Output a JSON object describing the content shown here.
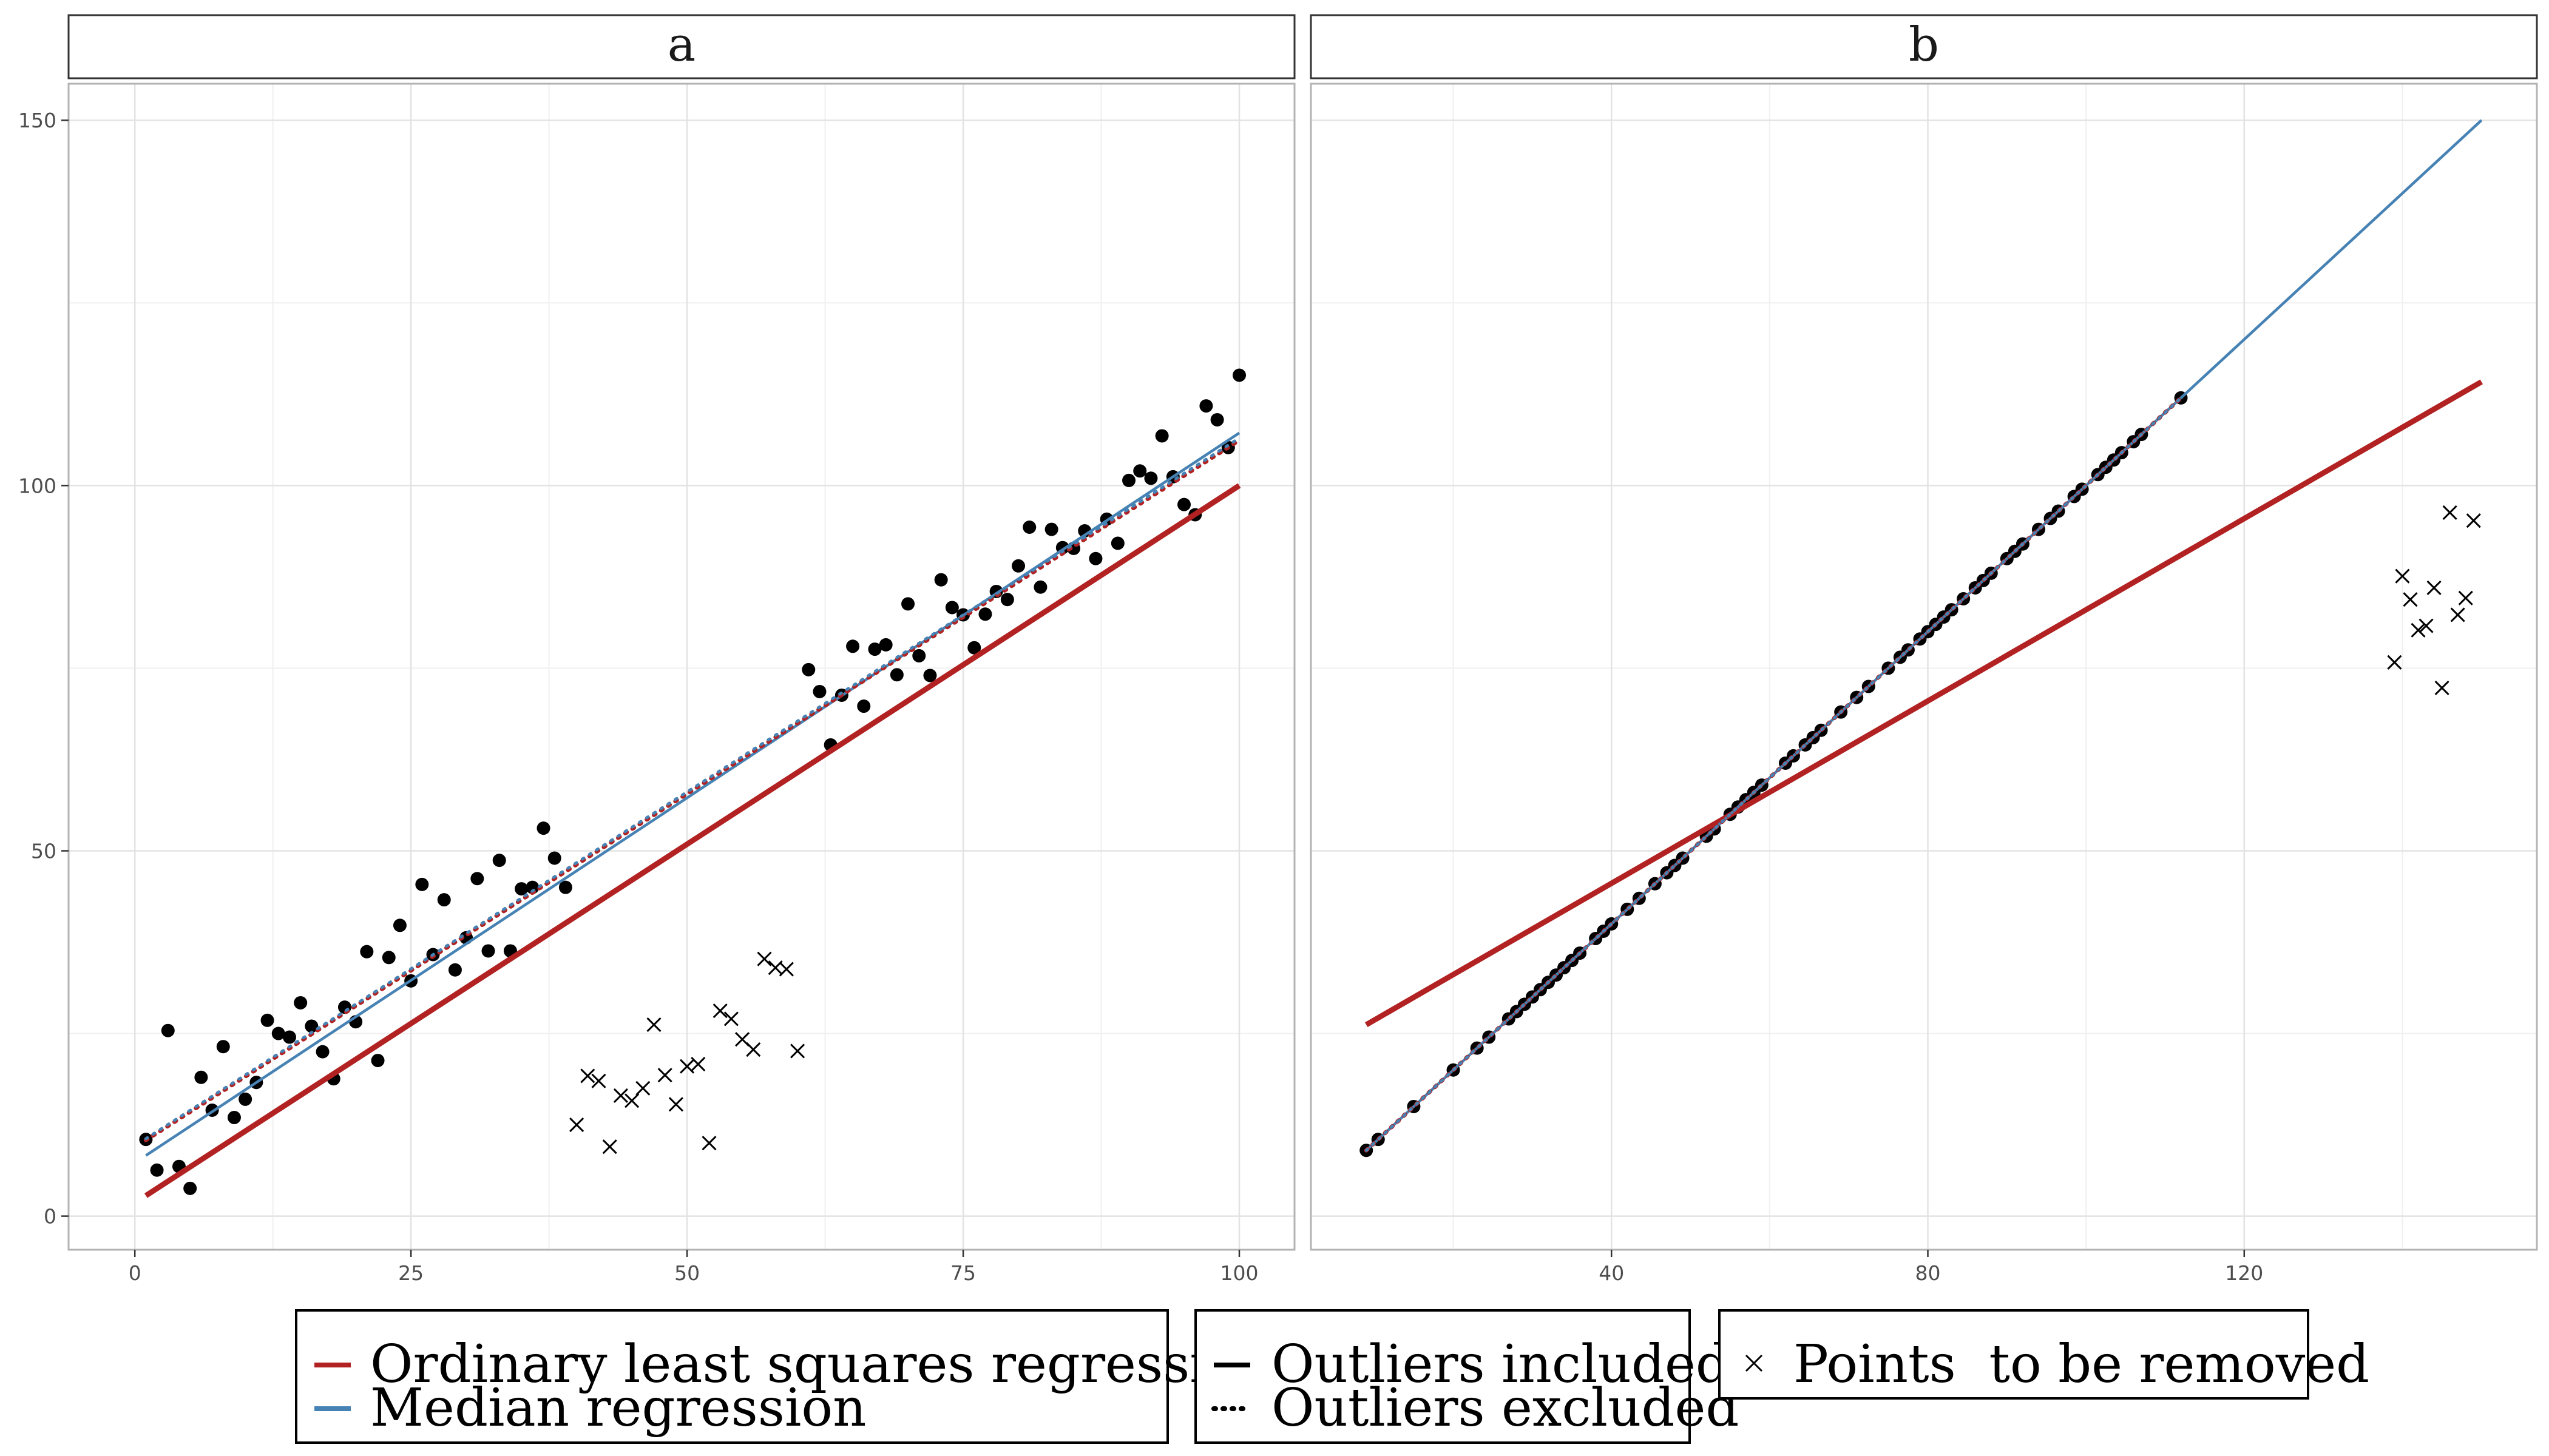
{
  "chart_data": [
    {
      "panel": "a",
      "type": "scatter",
      "xlim": [
        -6,
        105
      ],
      "ylim": [
        -4.6,
        155
      ],
      "x_ticks": [
        0,
        25,
        50,
        75,
        100
      ],
      "y_ticks": [
        0,
        50,
        100,
        150
      ],
      "x_tick_labels": [
        "0",
        "25",
        "50",
        "75",
        "100"
      ],
      "y_tick_labels": [
        "0",
        "50",
        "100",
        "150"
      ],
      "grid": true,
      "points": [
        [
          1,
          10.5
        ],
        [
          2,
          6.3
        ],
        [
          3,
          25.4
        ],
        [
          4,
          6.8
        ],
        [
          5,
          3.8
        ],
        [
          6,
          19
        ],
        [
          7,
          14.5
        ],
        [
          8,
          23.2
        ],
        [
          9,
          13.5
        ],
        [
          10,
          16
        ],
        [
          11,
          18.3
        ],
        [
          12,
          26.8
        ],
        [
          13,
          25
        ],
        [
          14,
          24.5
        ],
        [
          15,
          29.2
        ],
        [
          16,
          26
        ],
        [
          17,
          22.5
        ],
        [
          18,
          18.8
        ],
        [
          19,
          28.6
        ],
        [
          20,
          26.6
        ],
        [
          21,
          36.2
        ],
        [
          22,
          21.3
        ],
        [
          23,
          35.4
        ],
        [
          24,
          39.8
        ],
        [
          25,
          32.2
        ],
        [
          26,
          45.4
        ],
        [
          27,
          35.8
        ],
        [
          28,
          43.3
        ],
        [
          29,
          33.7
        ],
        [
          30,
          38.1
        ],
        [
          31,
          46.2
        ],
        [
          32,
          36.3
        ],
        [
          33,
          48.7
        ],
        [
          34,
          36.3
        ],
        [
          35,
          44.8
        ],
        [
          36,
          45
        ],
        [
          37,
          53.1
        ],
        [
          38,
          49
        ],
        [
          39,
          45
        ],
        [
          61,
          74.8
        ],
        [
          62,
          71.8
        ],
        [
          63,
          64.5
        ],
        [
          64,
          71.3
        ],
        [
          65,
          78
        ],
        [
          66,
          69.8
        ],
        [
          67,
          77.6
        ],
        [
          68,
          78.2
        ],
        [
          69,
          74.1
        ],
        [
          70,
          83.8
        ],
        [
          71,
          76.7
        ],
        [
          72,
          74
        ],
        [
          73,
          87.1
        ],
        [
          74,
          83.3
        ],
        [
          75,
          82.3
        ],
        [
          76,
          77.8
        ],
        [
          77,
          82.4
        ],
        [
          78,
          85.5
        ],
        [
          79,
          84.4
        ],
        [
          80,
          89
        ],
        [
          81,
          94.3
        ],
        [
          82,
          86.1
        ],
        [
          83,
          94
        ],
        [
          84,
          91.5
        ],
        [
          85,
          91.4
        ],
        [
          86,
          93.8
        ],
        [
          87,
          90
        ],
        [
          88,
          95.4
        ],
        [
          89,
          92.1
        ],
        [
          90,
          100.7
        ],
        [
          91,
          102
        ],
        [
          92,
          101
        ],
        [
          93,
          106.8
        ],
        [
          94,
          101.2
        ],
        [
          95,
          97.4
        ],
        [
          96,
          96
        ],
        [
          97,
          110.9
        ],
        [
          98,
          109
        ],
        [
          99,
          105.2
        ],
        [
          100,
          115.1
        ]
      ],
      "removed_points": [
        [
          40,
          12.5
        ],
        [
          41,
          19.2
        ],
        [
          42,
          18.5
        ],
        [
          43,
          9.5
        ],
        [
          44,
          16.5
        ],
        [
          45,
          15.8
        ],
        [
          46,
          17.5
        ],
        [
          47,
          26.2
        ],
        [
          48,
          19.3
        ],
        [
          49,
          15.3
        ],
        [
          50,
          20.5
        ],
        [
          51,
          20.8
        ],
        [
          52,
          10
        ],
        [
          53,
          28.1
        ],
        [
          54,
          27
        ],
        [
          55,
          24.2
        ],
        [
          56,
          22.8
        ],
        [
          57,
          35.2
        ],
        [
          58,
          34
        ],
        [
          59,
          33.8
        ],
        [
          60,
          22.6
        ]
      ],
      "series": [
        {
          "name": "Ordinary least squares regression",
          "style": "Outliers included",
          "color": "#B22222",
          "x": [
            1,
            100
          ],
          "y": [
            2.8,
            100
          ]
        },
        {
          "name": "Median regression",
          "style": "Outliers included",
          "color": "#4682B4",
          "x": [
            1,
            100
          ],
          "y": [
            8.3,
            107.2
          ]
        },
        {
          "name": "Ordinary least squares regression",
          "style": "Outliers excluded",
          "color": "#B22222",
          "x": [
            1,
            100
          ],
          "y": [
            10.4,
            106.2
          ]
        },
        {
          "name": "Median regression",
          "style": "Outliers excluded",
          "color": "#4682B4",
          "x": [
            1,
            100
          ],
          "y": [
            10.6,
            106.5
          ]
        }
      ]
    },
    {
      "panel": "b",
      "type": "scatter",
      "xlim": [
        2,
        157
      ],
      "ylim": [
        -4.6,
        155
      ],
      "x_ticks": [
        40,
        80,
        120
      ],
      "y_ticks": [
        0,
        50,
        100,
        150
      ],
      "x_tick_labels": [
        "40",
        "80",
        "120"
      ],
      "y_tick_labels": [
        "0",
        "50",
        "100",
        "150"
      ],
      "grid": true,
      "points": [
        [
          9,
          9
        ],
        [
          10.5,
          10.5
        ],
        [
          15,
          15
        ],
        [
          20,
          20
        ],
        [
          23,
          23
        ],
        [
          24.5,
          24.5
        ],
        [
          27,
          27
        ],
        [
          28,
          28
        ],
        [
          29,
          29
        ],
        [
          30,
          30
        ],
        [
          31,
          31
        ],
        [
          32,
          32
        ],
        [
          33,
          33
        ],
        [
          34,
          34
        ],
        [
          35,
          35
        ],
        [
          36,
          36
        ],
        [
          38,
          38
        ],
        [
          39,
          39
        ],
        [
          40,
          40
        ],
        [
          42,
          42
        ],
        [
          43.5,
          43.5
        ],
        [
          45.5,
          45.5
        ],
        [
          47,
          47
        ],
        [
          48,
          48
        ],
        [
          49,
          49
        ],
        [
          52,
          52
        ],
        [
          53,
          53
        ],
        [
          55,
          55
        ],
        [
          56,
          56
        ],
        [
          57,
          57
        ],
        [
          58,
          58
        ],
        [
          59,
          59
        ],
        [
          62,
          62
        ],
        [
          63,
          63
        ],
        [
          64.5,
          64.5
        ],
        [
          65.5,
          65.5
        ],
        [
          66.5,
          66.5
        ],
        [
          69,
          69
        ],
        [
          71,
          71
        ],
        [
          72.5,
          72.5
        ],
        [
          75,
          75
        ],
        [
          76.5,
          76.5
        ],
        [
          77.5,
          77.5
        ],
        [
          79,
          79
        ],
        [
          80,
          80
        ],
        [
          81,
          81
        ],
        [
          82,
          82
        ],
        [
          83,
          83
        ],
        [
          84.5,
          84.5
        ],
        [
          86,
          86
        ],
        [
          87,
          87
        ],
        [
          88,
          88
        ],
        [
          90,
          90
        ],
        [
          91,
          91
        ],
        [
          92,
          92
        ],
        [
          94,
          94
        ],
        [
          95.5,
          95.5
        ],
        [
          96.5,
          96.5
        ],
        [
          98.5,
          98.5
        ],
        [
          99.5,
          99.5
        ],
        [
          101.5,
          101.5
        ],
        [
          102.5,
          102.5
        ],
        [
          103.5,
          103.5
        ],
        [
          104.5,
          104.5
        ],
        [
          106,
          106
        ],
        [
          107,
          107
        ],
        [
          112,
          112
        ]
      ],
      "removed_points": [
        [
          139,
          75.8
        ],
        [
          140,
          87.6
        ],
        [
          141,
          84.4
        ],
        [
          142,
          80.2
        ],
        [
          143,
          80.8
        ],
        [
          144,
          86
        ],
        [
          145,
          72.3
        ],
        [
          146,
          96.3
        ],
        [
          147,
          82.3
        ],
        [
          148,
          84.6
        ],
        [
          149,
          95.2
        ]
      ],
      "series": [
        {
          "name": "Ordinary least squares regression",
          "style": "Outliers included",
          "color": "#B22222",
          "x": [
            9,
            150
          ],
          "y": [
            26.2,
            114.2
          ]
        },
        {
          "name": "Median regression",
          "style": "Outliers included",
          "color": "#4682B4",
          "x": [
            9,
            150
          ],
          "y": [
            9,
            150
          ]
        },
        {
          "name": "Ordinary least squares regression",
          "style": "Outliers excluded",
          "color": "#B22222",
          "x": [
            9,
            112
          ],
          "y": [
            9,
            112
          ]
        },
        {
          "name": "Median regression",
          "style": "Outliers excluded",
          "color": "#4682B4",
          "x": [
            9,
            112
          ],
          "y": [
            9,
            112
          ]
        }
      ]
    }
  ],
  "legend": {
    "colour": [
      {
        "label": "Ordinary least squares regression",
        "color": "#B22222"
      },
      {
        "label": "Median regression",
        "color": "#4682B4"
      }
    ],
    "linetype": [
      {
        "label": "Outliers included",
        "dash": "solid"
      },
      {
        "label": "Outliers excluded",
        "dash": "dotted"
      }
    ],
    "shape": [
      {
        "label": "Points  to be removed",
        "symbol": "cross"
      }
    ]
  }
}
